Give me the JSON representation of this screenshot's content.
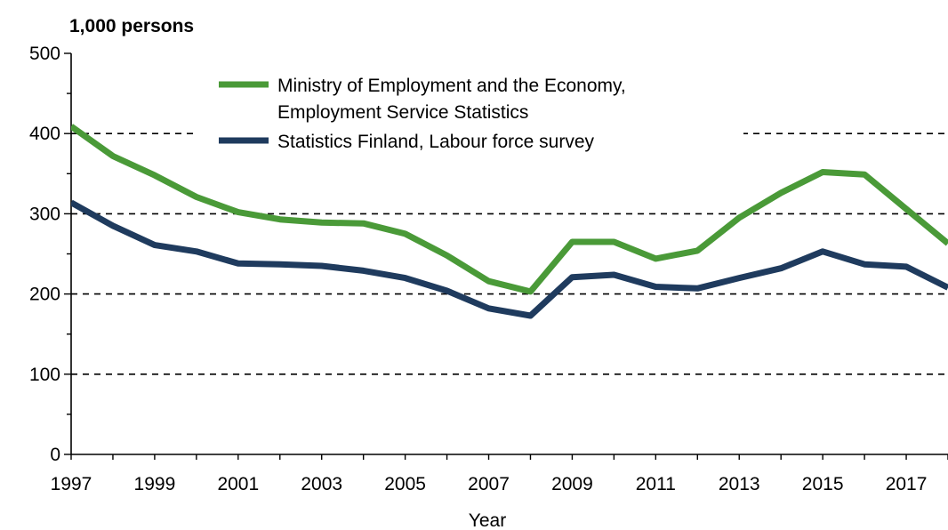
{
  "chart_data": {
    "type": "line",
    "ylabel": "1,000 persons",
    "xlabel": "Year",
    "ylim": [
      0,
      500
    ],
    "xlim": [
      1997,
      2018
    ],
    "grid": "horizontal-dashed",
    "legend_position": "top-center",
    "y_ticks": [
      "0",
      "100",
      "200",
      "300",
      "400",
      "500"
    ],
    "x_ticks": [
      "1997",
      "1999",
      "2001",
      "2003",
      "2005",
      "2007",
      "2009",
      "2011",
      "2013",
      "2015",
      "2017"
    ],
    "x": [
      1997,
      1998,
      1999,
      2000,
      2001,
      2002,
      2003,
      2004,
      2005,
      2006,
      2007,
      2008,
      2009,
      2010,
      2011,
      2012,
      2013,
      2014,
      2015,
      2016,
      2017,
      2018
    ],
    "series": [
      {
        "name": "Ministry of Employment and the Economy, Employment Service Statistics",
        "name_lines": [
          "Ministry of Employment and the Economy,",
          "Employment Service Statistics"
        ],
        "color": "#4a9a38",
        "values": [
          409,
          372,
          348,
          321,
          302,
          293,
          289,
          288,
          275,
          248,
          216,
          203,
          265,
          265,
          244,
          254,
          295,
          326,
          352,
          349,
          306,
          263
        ]
      },
      {
        "name": "Statistics Finland, Labour force survey",
        "name_lines": [
          "Statistics Finland, Labour force survey"
        ],
        "color": "#1f3b5e",
        "values": [
          314,
          285,
          261,
          253,
          238,
          237,
          235,
          229,
          220,
          204,
          182,
          173,
          221,
          224,
          209,
          207,
          220,
          232,
          253,
          237,
          234,
          208
        ]
      }
    ]
  }
}
